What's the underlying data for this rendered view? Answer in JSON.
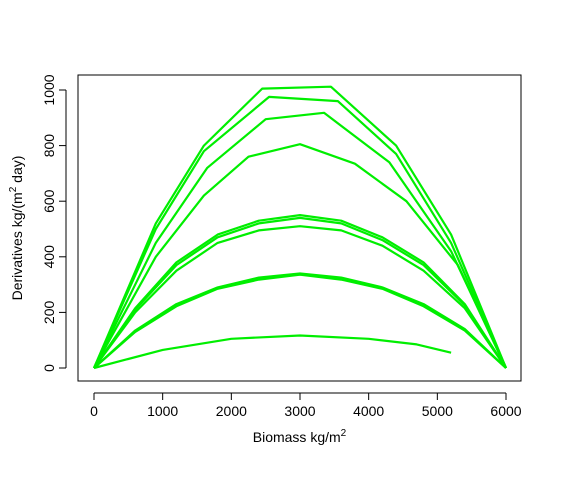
{
  "chart_data": {
    "type": "line",
    "title": "",
    "xlabel": "Biomass kg/m²",
    "ylabel": "Derivatives kg/(m² day)",
    "xlim": [
      0,
      6000
    ],
    "ylim": [
      0,
      1000
    ],
    "xticks": [
      0,
      1000,
      2000,
      3000,
      4000,
      5000,
      6000
    ],
    "yticks": [
      0,
      200,
      400,
      600,
      800,
      1000
    ],
    "grid": false,
    "legend": "none",
    "line_color": "#00ee00",
    "series": [
      {
        "x": [
          0,
          900,
          1600,
          2450,
          3450,
          4400,
          5200,
          6000
        ],
        "y": [
          0,
          520,
          800,
          1005,
          1012,
          800,
          480,
          0
        ]
      },
      {
        "x": [
          0,
          900,
          1600,
          2550,
          3550,
          4400,
          5200,
          6000
        ],
        "y": [
          0,
          500,
          780,
          975,
          960,
          770,
          450,
          0
        ]
      },
      {
        "x": [
          0,
          900,
          1650,
          2500,
          3350,
          4300,
          5200,
          6000
        ],
        "y": [
          0,
          450,
          720,
          895,
          918,
          740,
          420,
          0
        ]
      },
      {
        "x": [
          0,
          900,
          1600,
          2250,
          3000,
          3800,
          4550,
          5300,
          6000
        ],
        "y": [
          0,
          400,
          620,
          760,
          805,
          735,
          600,
          370,
          0
        ]
      },
      {
        "x": [
          0,
          600,
          1200,
          1800,
          2400,
          3000,
          3600,
          4200,
          4800,
          5400,
          6000
        ],
        "y": [
          0,
          215,
          380,
          480,
          530,
          550,
          530,
          470,
          380,
          230,
          0
        ]
      },
      {
        "x": [
          0,
          600,
          1200,
          1800,
          2400,
          3000,
          3600,
          4200,
          4800,
          5400,
          6000
        ],
        "y": [
          0,
          210,
          370,
          470,
          520,
          540,
          520,
          460,
          370,
          225,
          0
        ]
      },
      {
        "x": [
          0,
          600,
          1200,
          1800,
          2400,
          3000,
          3600,
          4200,
          4800,
          5400,
          6000
        ],
        "y": [
          0,
          200,
          350,
          450,
          495,
          510,
          495,
          440,
          350,
          215,
          0
        ]
      },
      {
        "x": [
          0,
          600,
          1200,
          1800,
          2400,
          3000,
          3600,
          4200,
          4800,
          5400,
          6000
        ],
        "y": [
          0,
          135,
          230,
          290,
          325,
          340,
          325,
          290,
          230,
          140,
          0
        ]
      },
      {
        "x": [
          0,
          600,
          1200,
          1800,
          2400,
          3000,
          3600,
          4200,
          4800,
          5400,
          6000
        ],
        "y": [
          0,
          130,
          222,
          285,
          318,
          336,
          318,
          285,
          222,
          135,
          0
        ]
      },
      {
        "x": [
          0,
          1000,
          2000,
          3000,
          4000,
          4700,
          5200
        ],
        "y": [
          0,
          65,
          105,
          117,
          105,
          85,
          55
        ]
      }
    ]
  }
}
